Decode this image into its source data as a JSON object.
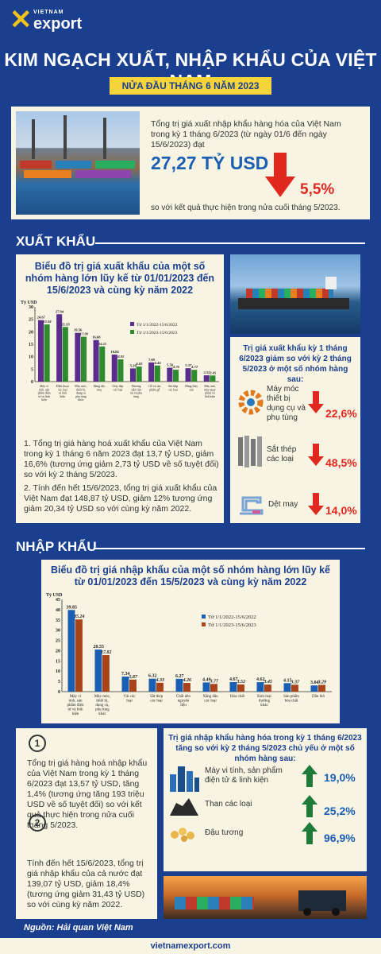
{
  "logo": {
    "small": "VIETNAM",
    "big": "export"
  },
  "header": {
    "title": "KIM NGẠCH XUẤT, NHẬP KHẨU CỦA VIỆT NAM",
    "subtitle": "NỬA ĐẦU THÁNG 6 NĂM 2023"
  },
  "summary": {
    "text": "Tổng trị giá xuất nhập khẩu hàng hóa của Việt Nam trong kỳ 1 tháng 6/2023 (từ ngày 01/6 đến ngày 15/6/2023) đạt",
    "value": "27,27 TỶ USD",
    "change": "5,5%",
    "foot": "so với kết quả thực hiện trong nửa cuối tháng 5/2023."
  },
  "export": {
    "section": "XUẤT KHẨU",
    "chart_title": "Biểu đồ trị giá xuất khẩu của một số nhóm hàng lớn lũy kế từ 01/01/2023 đến 15/6/2023 và cùng kỳ năm 2022",
    "p1": "1. Tổng trị giá hàng hoá xuất khẩu của Việt Nam trong kỳ 1 tháng 6 năm 2023 đạt 13,7 tỷ USD, giảm 16,6% (tương ứng giảm 2,73 tỷ USD về số tuyệt đối) so với kỳ 2 tháng 5/2023.",
    "p2": "2. Tính đến hết 15/6/2023, tổng trị giá xuất khẩu của Việt Nam đạt 148,87 tỷ USD, giảm 12% tương ứng giảm 20,34 tỷ USD so với cùng kỳ năm 2022.",
    "side_title": "Trị giá xuất khẩu kỳ 1 tháng 6/2023 giảm so với kỳ 2 tháng 5/2023 ở một số nhóm hàng sau:",
    "items": [
      {
        "label": "Máy móc thiết bị dụng cụ và phụ tùng",
        "pct": "22,6%"
      },
      {
        "label": "Sắt thép các loại",
        "pct": "48,5%"
      },
      {
        "label": "Dệt may",
        "pct": "14,0%"
      }
    ]
  },
  "import": {
    "section": "NHẬP KHẨU",
    "chart_title": "Biểu đồ trị giá nhập khẩu của một số nhóm hàng lớn lũy kế từ 01/01/2023 đến 15/5/2023 và cùng kỳ năm 2022",
    "n1": "1",
    "p1": "Tổng trị giá hàng hoá nhập khẩu của Việt Nam trong kỳ 1 tháng 6/2023 đạt 13,57 tỷ USD, tăng 1,4% (tương ứng tăng 193 triệu USD về số tuyệt đối) so với kết quả thực hiện trong nửa cuối tháng 5/2023.",
    "n2": "2",
    "p2": "Tính đến hết 15/6/2023, tổng trị giá nhập khẩu của cả nước đạt 139,07 tỷ USD, giảm 18,4% (tương ứng giảm 31,43 tỷ USD) so với cùng kỳ năm 2022.",
    "side_title": "Trị giá nhập khẩu hàng hóa trong kỳ 1 tháng 6/2023 tăng so với kỳ 2 tháng 5/2023 chủ yếu ở một số nhóm hàng sau:",
    "items": [
      {
        "label": "Máy vi tính, sản phẩm điện tử & linh kiện",
        "pct": "19,0%"
      },
      {
        "label": "Than các loại",
        "pct": "25,2%"
      },
      {
        "label": "Đậu tương",
        "pct": "96,9%"
      }
    ]
  },
  "source": "Nguồn: Hải quan Việt Nam",
  "footer": "vietnamexport.com",
  "colors": {
    "navy": "#1a3f8f",
    "yellow": "#f7d43a",
    "red": "#e0281e",
    "green": "#1f7a3a",
    "bar2022": "#5a2c8c",
    "bar2023": "#2e8b2e",
    "imp2022": "#1a5fb4",
    "imp2023": "#a8431a"
  },
  "chart_data": [
    {
      "type": "bar",
      "title": "Biểu đồ trị giá xuất khẩu của một số nhóm hàng lớn lũy kế từ 01/01/2023 đến 15/6/2023 và cùng kỳ năm 2022",
      "ylabel": "Tỷ USD",
      "ylim": [
        0,
        30
      ],
      "yticks": [
        0,
        5,
        10,
        15,
        20,
        25,
        30
      ],
      "categories": [
        "Máy vi tính, sản phẩm điện tử và linh kiện",
        "Điện thoại các loại và linh kiện",
        "Máy móc, thiết bị, dụng cụ phụ tùng khác",
        "Hàng dệt, may",
        "Giày dép các loại",
        "Phương tiện vận tải và phụ tùng",
        "Gỗ và sản phẩm gỗ",
        "Sắt thép các loại",
        "Hàng thủy sản",
        "Máy ảnh, máy quay phim và linh kiện"
      ],
      "series": [
        {
          "name": "Từ 1/1/2022-15/6/2022",
          "values": [
            24.67,
            27.04,
            19.56,
            16.68,
            10.84,
            5.29,
            7.69,
            5.56,
            5.37,
            2.52
          ]
        },
        {
          "name": "Từ 1/1/2023-15/6/2023",
          "values": [
            22.94,
            21.93,
            17.99,
            14.11,
            8.92,
            6.02,
            6.46,
            4.76,
            4.72,
            2.45
          ]
        }
      ],
      "data_labels": [
        [
          "24.67",
          "27.04",
          "19.56",
          "16.68",
          "10.84",
          "5.29",
          "7.69",
          "5.56",
          "5.37",
          "2.52"
        ],
        [
          "22.94",
          "21.93",
          "17.99",
          "14.11",
          "8.92",
          "6.02",
          "6.46",
          "4.76",
          "4.72",
          "2.45"
        ]
      ],
      "legend": "right"
    },
    {
      "type": "bar",
      "title": "Biểu đồ trị giá nhập khẩu của một số nhóm hàng lớn lũy kế từ 01/01/2023 đến 15/5/2023 và cùng kỳ năm 2022",
      "ylabel": "Tỷ USD",
      "ylim": [
        0,
        45
      ],
      "yticks": [
        0,
        5,
        10,
        15,
        20,
        25,
        30,
        35,
        40,
        45
      ],
      "categories": [
        "Máy vi tính, sản phẩm điện tử và linh kiện",
        "Máy móc, thiết bị, dụng cụ, phụ tùng khác",
        "Vải các loại",
        "Sắt thép các loại",
        "Chất dẻo nguyên liệu",
        "Xăng dầu các loại",
        "Hóa chất",
        "Kim loại thường khác",
        "Sản phẩm hóa chất",
        "Dầu thô"
      ],
      "series": [
        {
          "name": "Từ 1/1/2022-15/6/2022",
          "values": [
            39.85,
            20.55,
            7.34,
            6.32,
            6.27,
            4.49,
            4.67,
            4.62,
            4.15,
            3.04
          ]
        },
        {
          "name": "Từ 1/1/2023-15/6/2023",
          "values": [
            35.24,
            17.82,
            5.87,
            4.33,
            4.26,
            3.77,
            3.52,
            3.45,
            3.37,
            3.29
          ]
        }
      ],
      "data_labels": [
        [
          "39.85",
          "20.55",
          "7.34",
          "6.32",
          "6.27",
          "4.49",
          "4.67",
          "4.62",
          "4.15",
          "3.04"
        ],
        [
          "35.24",
          "17.82",
          "5.87",
          "4.33",
          "4.26",
          "3.77",
          "3.52",
          "3.45",
          "3.37",
          "3.29"
        ]
      ],
      "legend": "right"
    }
  ]
}
